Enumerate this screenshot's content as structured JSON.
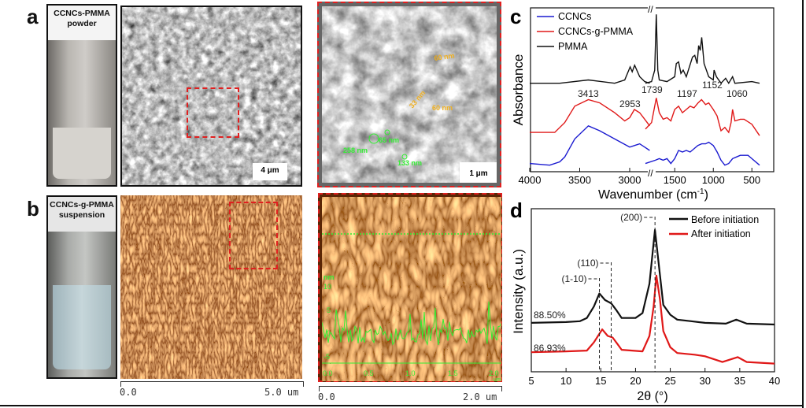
{
  "panels": {
    "a": {
      "label": "a",
      "vial_caption_line1": "CCNCs-PMMA",
      "vial_caption_line2": "powder",
      "sem_scale": "4 μm",
      "zoom_scale": "1 μm",
      "annotations_yellow": [
        "60 nm",
        "33 nm",
        "60 nm"
      ],
      "annotations_green": [
        "258 nm",
        "65 nm",
        "133 nm"
      ]
    },
    "b": {
      "label": "b",
      "vial_caption_line1": "CCNCs-g-PMMA",
      "vial_caption_line2": "suspension",
      "afm_scale_start": "0.0",
      "afm_scale_end": "5.0 um",
      "zoom_scale_start": "0.0",
      "zoom_scale_end": "2.0 um",
      "profile_unit": "nm",
      "profile_yticks": [
        "10",
        "5",
        "0",
        "-5"
      ],
      "profile_xticks": [
        "0.0",
        "0.5",
        "1.0",
        "1.5",
        "2.0"
      ],
      "profile_xunit": "μm"
    }
  },
  "colors": {
    "red": "#e01818",
    "blue": "#1a1ad0",
    "black": "#111111",
    "green": "#22dd22"
  },
  "chart_data": [
    {
      "id": "c",
      "label": "c",
      "type": "line",
      "xlabel": "Wavenumber (cm",
      "xlabel_sup": "-1",
      "xlabel_end": ")",
      "ylabel": "Absorbance",
      "x_reversed": true,
      "x_break": [
        2800,
        1880
      ],
      "xticks": [
        "4000",
        "3500",
        "3000",
        "1500",
        "1000",
        "500"
      ],
      "ylim": [
        0,
        100
      ],
      "legend": "top-left",
      "annotations": [
        "3413",
        "2953",
        "1739",
        "1197",
        "1152",
        "1060"
      ],
      "series": [
        {
          "name": "CCNCs",
          "color": "#1a1ad0",
          "points": [
            [
              4000,
              5
            ],
            [
              3800,
              4
            ],
            [
              3700,
              6
            ],
            [
              3650,
              9
            ],
            [
              3550,
              20
            ],
            [
              3413,
              28
            ],
            [
              3300,
              25
            ],
            [
              3150,
              20
            ],
            [
              3000,
              15
            ],
            [
              2950,
              16
            ],
            [
              2900,
              17
            ],
            [
              2850,
              15
            ],
            [
              2800,
              13
            ],
            [
              1880,
              5
            ],
            [
              1750,
              7
            ],
            [
              1700,
              8
            ],
            [
              1650,
              7
            ],
            [
              1600,
              8
            ],
            [
              1550,
              5
            ],
            [
              1500,
              8
            ],
            [
              1450,
              13
            ],
            [
              1400,
              12
            ],
            [
              1350,
              13
            ],
            [
              1300,
              12
            ],
            [
              1250,
              14
            ],
            [
              1200,
              16
            ],
            [
              1150,
              17
            ],
            [
              1100,
              17
            ],
            [
              1060,
              18
            ],
            [
              1000,
              16
            ],
            [
              950,
              12
            ],
            [
              900,
              7
            ],
            [
              850,
              4
            ],
            [
              800,
              5
            ],
            [
              750,
              8
            ],
            [
              700,
              9
            ],
            [
              650,
              10
            ],
            [
              550,
              10
            ],
            [
              500,
              8
            ],
            [
              400,
              4
            ]
          ]
        },
        {
          "name": "CCNCs-g-PMMA",
          "color": "#e01818",
          "points": [
            [
              4000,
              24
            ],
            [
              3750,
              24
            ],
            [
              3650,
              30
            ],
            [
              3550,
              40
            ],
            [
              3413,
              44
            ],
            [
              3300,
              42
            ],
            [
              3150,
              36
            ],
            [
              3050,
              31
            ],
            [
              3000,
              33
            ],
            [
              2953,
              38
            ],
            [
              2900,
              36
            ],
            [
              2850,
              32
            ],
            [
              2800,
              28
            ],
            [
              1880,
              26
            ],
            [
              1800,
              30
            ],
            [
              1760,
              40
            ],
            [
              1739,
              45
            ],
            [
              1700,
              36
            ],
            [
              1650,
              32
            ],
            [
              1600,
              33
            ],
            [
              1550,
              31
            ],
            [
              1500,
              38
            ],
            [
              1450,
              40
            ],
            [
              1400,
              36
            ],
            [
              1350,
              38
            ],
            [
              1300,
              40
            ],
            [
              1250,
              39
            ],
            [
              1197,
              42
            ],
            [
              1152,
              44
            ],
            [
              1100,
              41
            ],
            [
              1060,
              42
            ],
            [
              1000,
              38
            ],
            [
              950,
              34
            ],
            [
              900,
              25
            ],
            [
              850,
              27
            ],
            [
              800,
              24
            ],
            [
              770,
              30
            ],
            [
              750,
              38
            ],
            [
              720,
              31
            ],
            [
              650,
              32
            ],
            [
              600,
              32
            ],
            [
              500,
              29
            ],
            [
              400,
              22
            ]
          ]
        },
        {
          "name": "PMMA",
          "color": "#111111",
          "points": [
            [
              4000,
              54
            ],
            [
              3700,
              54
            ],
            [
              3413,
              56
            ],
            [
              3150,
              54
            ],
            [
              3050,
              56
            ],
            [
              2995,
              64
            ],
            [
              2975,
              61
            ],
            [
              2950,
              65
            ],
            [
              2900,
              58
            ],
            [
              2850,
              55
            ],
            [
              2800,
              54
            ],
            [
              1880,
              54
            ],
            [
              1800,
              55
            ],
            [
              1760,
              62
            ],
            [
              1739,
              96
            ],
            [
              1720,
              62
            ],
            [
              1700,
              56
            ],
            [
              1600,
              55
            ],
            [
              1500,
              58
            ],
            [
              1480,
              66
            ],
            [
              1450,
              67
            ],
            [
              1420,
              60
            ],
            [
              1390,
              62
            ],
            [
              1350,
              58
            ],
            [
              1270,
              70
            ],
            [
              1240,
              71
            ],
            [
              1210,
              66
            ],
            [
              1190,
              77
            ],
            [
              1170,
              74
            ],
            [
              1150,
              82
            ],
            [
              1120,
              66
            ],
            [
              1060,
              58
            ],
            [
              1000,
              56
            ],
            [
              990,
              62
            ],
            [
              960,
              58
            ],
            [
              900,
              54
            ],
            [
              840,
              57
            ],
            [
              800,
              54
            ],
            [
              750,
              58
            ],
            [
              720,
              54
            ],
            [
              500,
              55
            ],
            [
              400,
              54
            ]
          ]
        }
      ]
    },
    {
      "id": "d",
      "label": "d",
      "type": "line",
      "xlabel": "2θ (°)",
      "ylabel": "Intensity (a.u.)",
      "xlim": [
        5,
        40
      ],
      "xticks": [
        "5",
        "10",
        "15",
        "20",
        "25",
        "30",
        "35",
        "40"
      ],
      "ylim": [
        0,
        100
      ],
      "legend": "top-right",
      "peak_labels": [
        {
          "text": "(1-10)",
          "x": 14.8
        },
        {
          "text": "(110)",
          "x": 16.5
        },
        {
          "text": "(200)",
          "x": 22.8
        }
      ],
      "crystallinity_labels": [
        "88.50%",
        "86.93%"
      ],
      "series": [
        {
          "name": "Before initiation",
          "color": "#111111",
          "points": [
            [
              5,
              30
            ],
            [
              10,
              30.5
            ],
            [
              12,
              31
            ],
            [
              13,
              33
            ],
            [
              14,
              40
            ],
            [
              14.8,
              48
            ],
            [
              15.6,
              44
            ],
            [
              16.5,
              42
            ],
            [
              17.2,
              38
            ],
            [
              18,
              33
            ],
            [
              20,
              33
            ],
            [
              21,
              36
            ],
            [
              22,
              54
            ],
            [
              22.8,
              87
            ],
            [
              23.5,
              60
            ],
            [
              24,
              41
            ],
            [
              25,
              35
            ],
            [
              26,
              32
            ],
            [
              28,
              31
            ],
            [
              30,
              30
            ],
            [
              33,
              29.5
            ],
            [
              34.5,
              32
            ],
            [
              36,
              29.5
            ],
            [
              40,
              29
            ]
          ]
        },
        {
          "name": "After initiation",
          "color": "#e01818",
          "points": [
            [
              5,
              12
            ],
            [
              10,
              12.5
            ],
            [
              13,
              13
            ],
            [
              14,
              18
            ],
            [
              15.2,
              26
            ],
            [
              16,
              22
            ],
            [
              16.7,
              21
            ],
            [
              17.4,
              17
            ],
            [
              18,
              13.5
            ],
            [
              21,
              12.5
            ],
            [
              22,
              22
            ],
            [
              22.6,
              40
            ],
            [
              23,
              59
            ],
            [
              23.5,
              45
            ],
            [
              24,
              25
            ],
            [
              25,
              15
            ],
            [
              26,
              11.5
            ],
            [
              28.5,
              10.5
            ],
            [
              30,
              9.5
            ],
            [
              32.5,
              6
            ],
            [
              34.7,
              9
            ],
            [
              36,
              6
            ],
            [
              40,
              5
            ]
          ]
        }
      ]
    }
  ]
}
